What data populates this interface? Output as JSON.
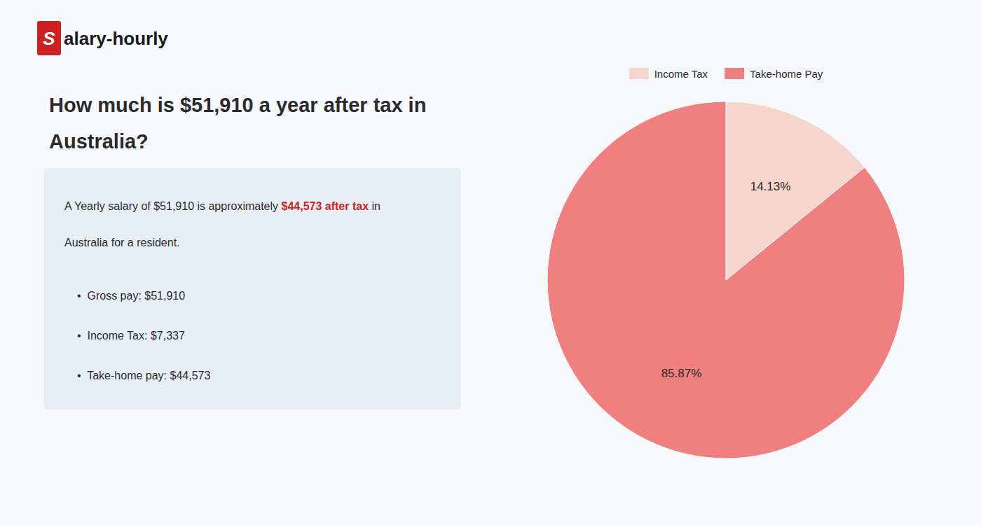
{
  "chart_data": {
    "type": "pie",
    "title": [
      "How much is $51,910 a year after tax in",
      "Australia?"
    ],
    "annotations": [
      "S",
      "alary-hourly",
      "A Yearly salary of $51,910 is approximately ",
      "$44,573 after tax",
      " in",
      "Australia for a resident.",
      "•  Gross pay: $51,910",
      "•  Income Tax: $7,337",
      "•  Take-home pay: $44,573"
    ],
    "categories": [
      "Income Tax",
      "Take-home Pay"
    ],
    "values": [
      14.13,
      85.87
    ],
    "value_labels": [
      "14.13%",
      "85.87%"
    ],
    "colors": [
      "#f5d5cc",
      "#f08080"
    ],
    "data_labels": true,
    "legend": "top"
  }
}
